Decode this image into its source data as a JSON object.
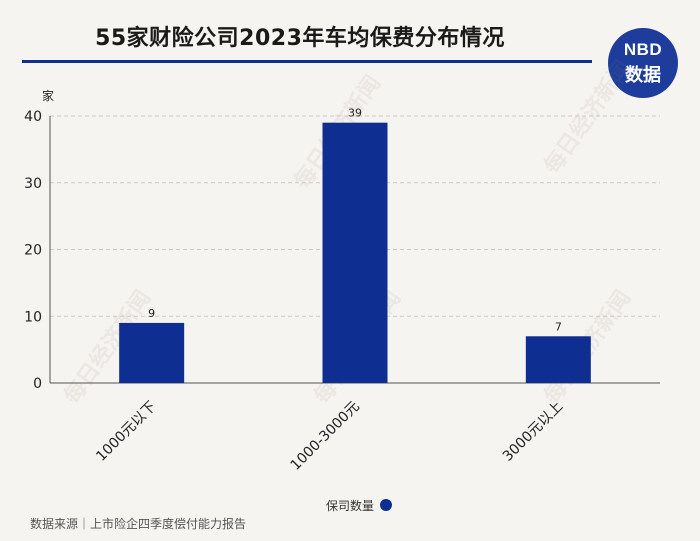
{
  "title": "55家财险公司2023年车均保费分布情况",
  "logo": {
    "line1": "NBD",
    "line2": "数据"
  },
  "watermark": "每日经济新闻",
  "legend": {
    "label": "保司数量"
  },
  "source": "数据来源｜上市险企四季度偿付能力报告",
  "colors": {
    "bar": "#0e2f91",
    "accent": "#0e2f91",
    "background": "#f6f4f0"
  },
  "chart_data": {
    "type": "bar",
    "categories": [
      "1000元以下",
      "1000-3000元",
      "3000元以上"
    ],
    "series": [
      {
        "name": "保司数量",
        "values": [
          9,
          39,
          7
        ]
      }
    ],
    "ylabel": "家",
    "ylim": [
      0,
      40
    ],
    "yticks": [
      0,
      10,
      20,
      30,
      40
    ],
    "data_labels": [
      "9",
      "39",
      "7"
    ],
    "grid": true,
    "legend_position": "bottom"
  }
}
